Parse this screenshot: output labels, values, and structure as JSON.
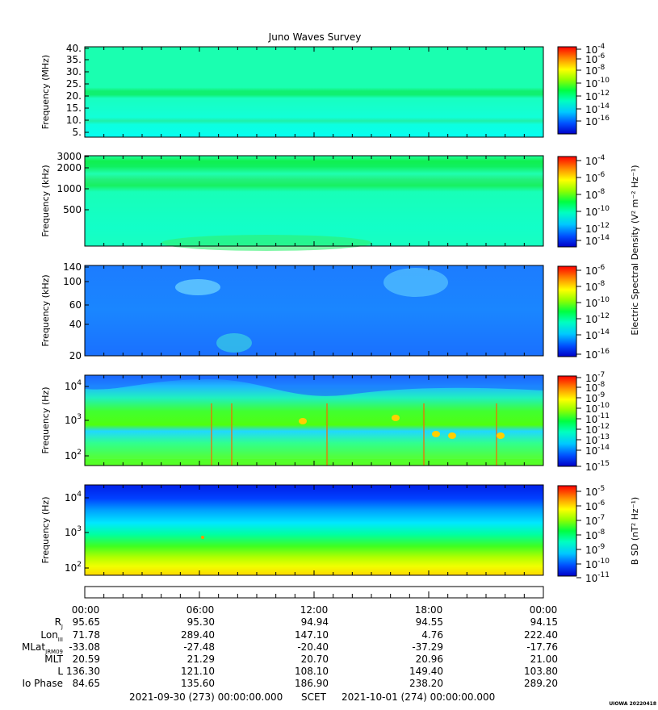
{
  "title": "Juno Waves Survey",
  "stamp": "UIOWA 20220418",
  "chart_data": [
    {
      "type": "heatmap",
      "panel": 1,
      "ylabel": "Frequency (MHz)",
      "yticks": [
        "40.",
        "35.",
        "30.",
        "25.",
        "20.",
        "15.",
        "10.",
        "5."
      ],
      "colorbar_ticks": [
        "-4",
        "-6",
        "-8",
        "-10",
        "-12",
        "-14",
        "-16"
      ],
      "bands": [
        "#14ffd0",
        "#28ff90",
        "#00ff40",
        "#28ff90"
      ]
    },
    {
      "type": "heatmap",
      "panel": 2,
      "ylabel": "Frequency (kHz)",
      "yticks": [
        "3000",
        "2000",
        "1000",
        "500"
      ],
      "colorbar_ticks": [
        "-4",
        "-6",
        "-8",
        "-10",
        "-12",
        "-14"
      ],
      "colorbar_label": "Electric Spectral Density (V² m⁻² Hz⁻¹)"
    },
    {
      "type": "heatmap",
      "panel": 3,
      "ylabel": "Frequency (kHz)",
      "yticks": [
        "140",
        "100",
        "60",
        "40",
        "20"
      ],
      "colorbar_ticks": [
        "-6",
        "-8",
        "-10",
        "-12",
        "-14",
        "-16"
      ]
    },
    {
      "type": "heatmap",
      "panel": 4,
      "ylabel": "Frequency (Hz)",
      "yticks": [
        "4",
        "3",
        "2"
      ],
      "colorbar_ticks": [
        "-7",
        "-8",
        "-9",
        "-10",
        "-11",
        "-12",
        "-13",
        "-14",
        "-15"
      ]
    },
    {
      "type": "heatmap",
      "panel": 5,
      "ylabel": "Frequency (Hz)",
      "yticks": [
        "4",
        "3",
        "2"
      ],
      "colorbar_ticks": [
        "-5",
        "-6",
        "-7",
        "-8",
        "-9",
        "-10",
        "-11"
      ],
      "colorbar_label": "B SD (nT² Hz⁻¹)"
    }
  ],
  "ephemeris": {
    "times": [
      "00:00",
      "06:00",
      "12:00",
      "18:00",
      "00:00"
    ],
    "rows": [
      {
        "label": "R",
        "sub": "J",
        "values": [
          "95.65",
          "95.30",
          "94.94",
          "94.55",
          "94.15"
        ]
      },
      {
        "label": "Lon",
        "sub": "III",
        "values": [
          "71.78",
          "289.40",
          "147.10",
          "4.76",
          "222.40"
        ]
      },
      {
        "label": "MLat",
        "sub": "JRM09",
        "values": [
          "-33.08",
          "-27.48",
          "-20.40",
          "-37.29",
          "-17.76"
        ]
      },
      {
        "label": "MLT",
        "sub": "",
        "values": [
          "20.59",
          "21.29",
          "20.70",
          "20.96",
          "21.00"
        ]
      },
      {
        "label": "L",
        "sub": "",
        "values": [
          "136.30",
          "121.10",
          "108.10",
          "149.40",
          "103.80"
        ]
      },
      {
        "label": "Io Phase",
        "sub": "",
        "values": [
          "84.65",
          "135.60",
          "186.90",
          "238.20",
          "289.20"
        ]
      }
    ]
  },
  "footer": {
    "start": "2021-09-30 (273) 00:00:00.000",
    "scet": "SCET",
    "end": "2021-10-01 (274) 00:00:00.000"
  }
}
